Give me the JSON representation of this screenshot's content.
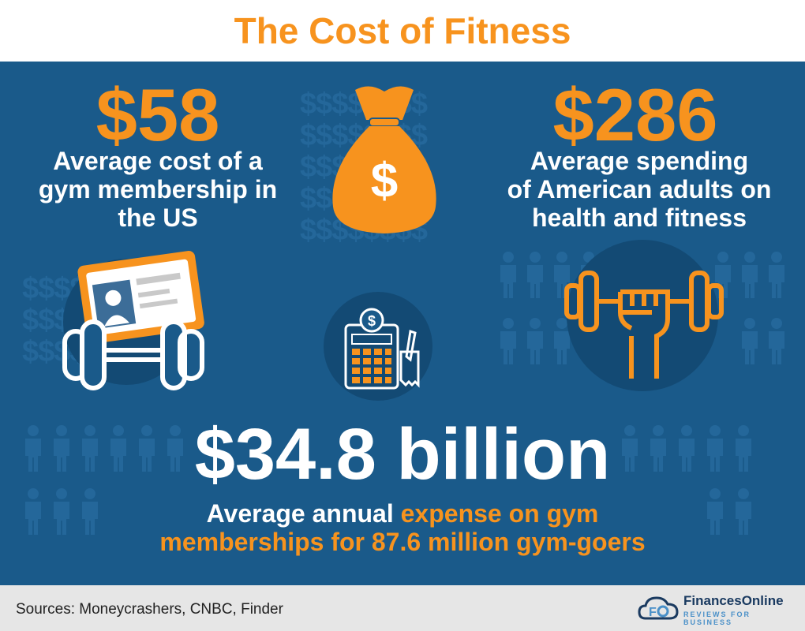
{
  "title": "The Cost of Fitness",
  "stat_left": {
    "value": "$58",
    "description_line1": "Average cost of a",
    "description_line2": "gym membership in",
    "description_line3": "the US"
  },
  "stat_right": {
    "value": "$286",
    "description_line1": "Average spending",
    "description_line2": "of American adults on",
    "description_line3": "health and fitness"
  },
  "stat_main": {
    "value": "$34.8 billion",
    "line1_white": "Average annual",
    "line1_orange": "expense on gym",
    "line2_orange": "memberships for 87.6 million gym-goers"
  },
  "footer": {
    "sources": "Sources: Moneycrashers, CNBC, Finder",
    "logo_name": "FinancesOnline",
    "logo_tagline": "REVIEWS FOR BUSINESS"
  },
  "colors": {
    "accent": "#f7931e",
    "panel": "#1a5a8a",
    "footer": "#e6e6e6"
  },
  "icons": [
    "money-bag-icon",
    "id-card-icon",
    "dumbbell-icon",
    "calculator-icon",
    "fist-dumbbell-icon",
    "people-silhouette-icon",
    "financesonline-logo-icon"
  ]
}
